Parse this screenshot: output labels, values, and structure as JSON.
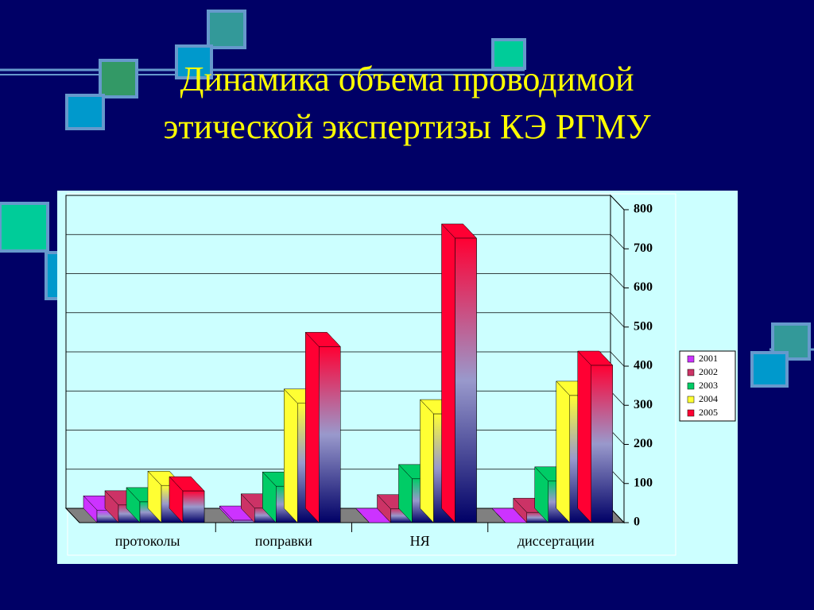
{
  "chart_data": {
    "type": "bar3d",
    "title": "Динамика объема проводимой этической экспертизы КЭ РГМУ",
    "categories": [
      "протоколы",
      "поправки",
      "НЯ",
      "диссертации"
    ],
    "series": [
      {
        "name": "2001",
        "color": "#cc33ff",
        "values": [
          32,
          6,
          0,
          0
        ]
      },
      {
        "name": "2002",
        "color": "#cc3366",
        "values": [
          45,
          37,
          35,
          26
        ]
      },
      {
        "name": "2003",
        "color": "#00cc66",
        "values": [
          53,
          93,
          112,
          106
        ]
      },
      {
        "name": "2004",
        "color": "#ffff33",
        "values": [
          95,
          305,
          278,
          325
        ]
      },
      {
        "name": "2005",
        "color": "#ff0033",
        "values": [
          81,
          450,
          727,
          402
        ]
      }
    ],
    "ylim": [
      0,
      800
    ],
    "yticks": [
      0,
      100,
      200,
      300,
      400,
      500,
      600,
      700,
      800
    ],
    "grid": true,
    "legend": "right"
  }
}
